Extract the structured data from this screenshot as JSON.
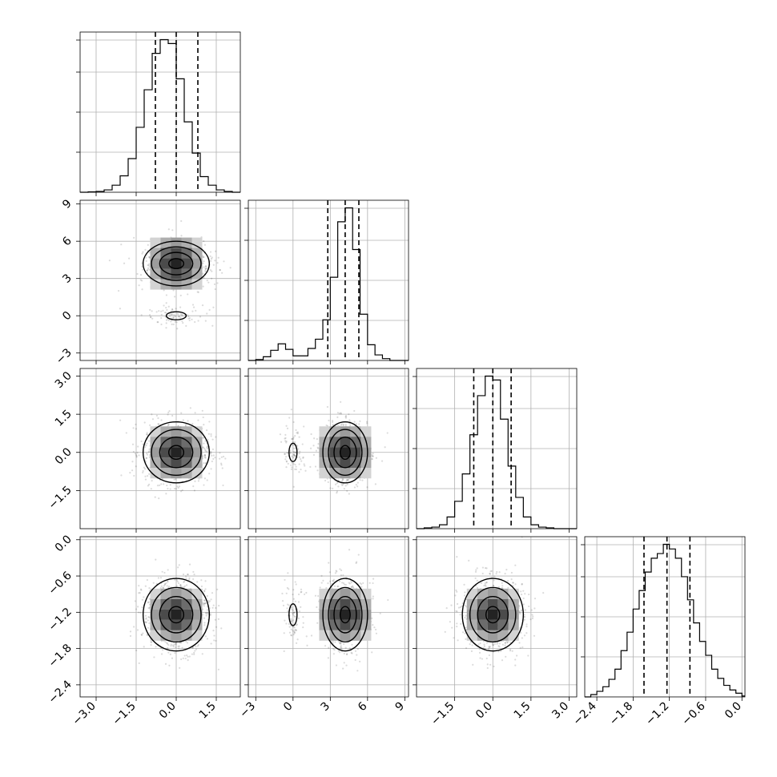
{
  "chart_data": {
    "type": "corner",
    "n_params": 4,
    "grid": true,
    "contour_levels": [
      0.118,
      0.393,
      0.675,
      0.864
    ],
    "axes": [
      {
        "range": [
          -3.6,
          2.4
        ],
        "ticks": [
          "−3.0",
          "−1.5",
          "0.0",
          "1.5"
        ],
        "tick_values": [
          -3.0,
          -1.5,
          0.0,
          1.5
        ]
      },
      {
        "range": [
          -3.6,
          9.3
        ],
        "ticks": [
          "−3",
          "0",
          "3",
          "6",
          "9"
        ],
        "tick_values": [
          -3,
          0,
          3,
          6,
          9
        ]
      },
      {
        "range": [
          -3.0,
          3.3
        ],
        "ticks": [
          "−1.5",
          "0.0",
          "1.5",
          "3.0"
        ],
        "tick_values": [
          -1.5,
          0.0,
          1.5,
          3.0
        ],
        "y_ticks": [
          "−1.5",
          "0.0",
          "1.5",
          "3.0"
        ]
      },
      {
        "range": [
          -2.6,
          0.05
        ],
        "ticks": [
          "−2.4",
          "−1.8",
          "−1.2",
          "−0.6",
          "0.0"
        ],
        "tick_values": [
          -2.4,
          -1.8,
          -1.2,
          -0.6,
          0.0
        ]
      }
    ],
    "marginals": [
      {
        "bin_edges": [
          -3.6,
          -3.3,
          -3.0,
          -2.7,
          -2.4,
          -2.1,
          -1.8,
          -1.5,
          -1.2,
          -0.9,
          -0.6,
          -0.3,
          0.0,
          0.3,
          0.6,
          0.9,
          1.2,
          1.5,
          1.8,
          2.1,
          2.4
        ],
        "counts": [
          0,
          1,
          2,
          6,
          18,
          42,
          86,
          166,
          262,
          355,
          390,
          380,
          290,
          180,
          100,
          40,
          18,
          6,
          2,
          0
        ],
        "quantiles": [
          -0.78,
          0.0,
          0.81
        ]
      },
      {
        "bin_edges": [
          -3.6,
          -3.0,
          -2.4,
          -1.8,
          -1.2,
          -0.6,
          0.0,
          0.6,
          1.2,
          1.8,
          2.4,
          3.0,
          3.6,
          4.2,
          4.8,
          5.4,
          6.0,
          6.6,
          7.2,
          7.8,
          9.3
        ],
        "counts": [
          0,
          2,
          8,
          22,
          36,
          24,
          10,
          10,
          26,
          46,
          88,
          180,
          300,
          330,
          240,
          100,
          34,
          12,
          4,
          0
        ],
        "quantiles": [
          2.8,
          4.2,
          5.3
        ]
      },
      {
        "bin_edges": [
          -3.0,
          -2.7,
          -2.4,
          -2.1,
          -1.8,
          -1.5,
          -1.2,
          -0.9,
          -0.6,
          -0.3,
          0.0,
          0.3,
          0.6,
          0.9,
          1.2,
          1.5,
          1.8,
          2.1,
          2.4,
          2.7,
          3.3
        ],
        "counts": [
          0,
          2,
          4,
          10,
          30,
          70,
          140,
          240,
          340,
          390,
          380,
          280,
          160,
          80,
          30,
          10,
          4,
          2,
          0,
          0
        ],
        "quantiles": [
          -0.75,
          0.0,
          0.72
        ]
      },
      {
        "bin_edges": [
          -2.6,
          -2.5,
          -2.4,
          -2.3,
          -2.2,
          -2.1,
          -2.0,
          -1.9,
          -1.8,
          -1.7,
          -1.6,
          -1.5,
          -1.4,
          -1.3,
          -1.2,
          -1.1,
          -1.0,
          -0.9,
          -0.8,
          -0.7,
          -0.6,
          -0.5,
          -0.4,
          -0.3,
          -0.2,
          -0.1,
          0.0,
          0.05
        ],
        "counts": [
          0,
          5,
          12,
          22,
          38,
          60,
          100,
          140,
          190,
          230,
          270,
          300,
          310,
          330,
          320,
          300,
          260,
          210,
          160,
          120,
          90,
          60,
          40,
          25,
          15,
          8,
          2
        ],
        "quantiles": [
          -1.62,
          -1.24,
          -0.86
        ]
      }
    ],
    "gaussians": [
      {
        "mean": 0.0,
        "std": 0.62,
        "weight": 1.0
      },
      {
        "mean": 4.2,
        "std": 0.9,
        "weight": 0.9,
        "secondary_mean": 0.0,
        "secondary_std": 0.45,
        "secondary_weight": 0.1
      },
      {
        "mean": 0.0,
        "std": 0.6,
        "weight": 1.0
      },
      {
        "mean": -1.24,
        "std": 0.3,
        "weight": 1.0
      }
    ]
  }
}
